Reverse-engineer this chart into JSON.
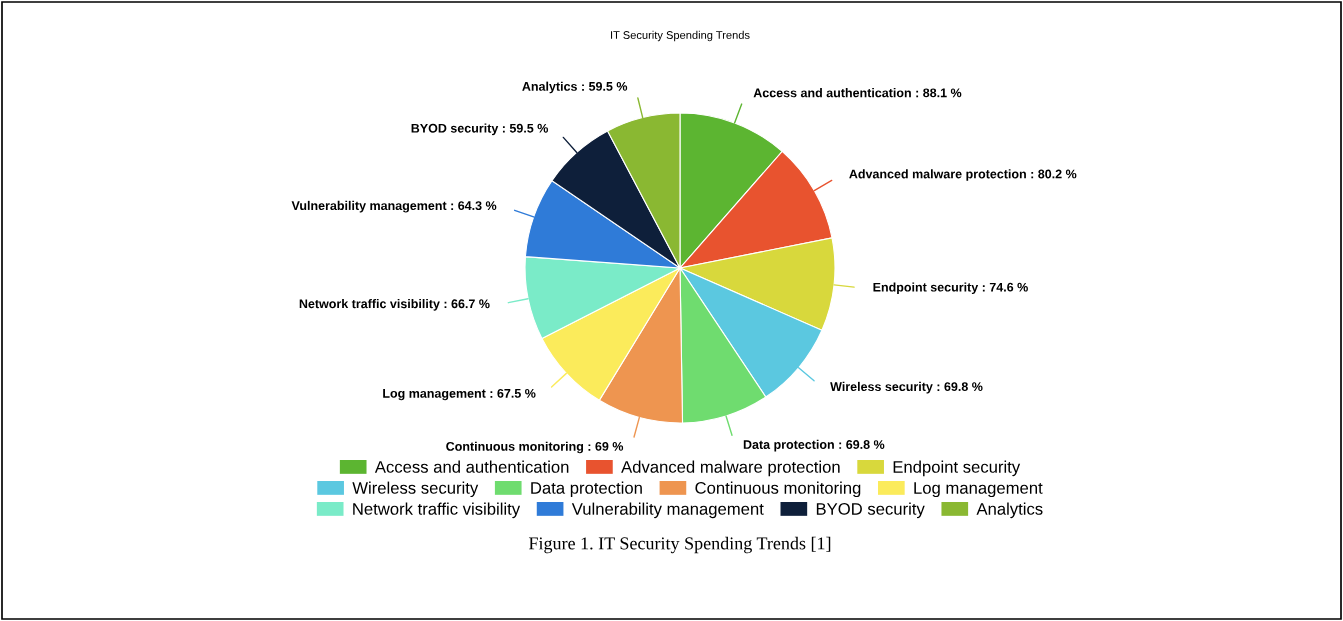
{
  "chart_data": {
    "type": "pie",
    "title": "IT Security Spending Trends",
    "categories": [
      "Access and authentication",
      "Advanced malware protection",
      "Endpoint security",
      "Wireless security",
      "Data protection",
      "Continuous monitoring",
      "Log management",
      "Network traffic visibility",
      "Vulnerability management",
      "BYOD security",
      "Analytics"
    ],
    "values": [
      88.1,
      80.2,
      74.6,
      69.8,
      69.8,
      69,
      67.5,
      66.7,
      64.3,
      59.5,
      59.5
    ],
    "colors": [
      "#5cb531",
      "#e8532f",
      "#d8d83c",
      "#5bc8e0",
      "#6fdc6f",
      "#ee9550",
      "#fbeb5b",
      "#7aebc8",
      "#2f7bd8",
      "#0e1f3a",
      "#8ab832"
    ],
    "value_labels": [
      "Access and authentication : 88.1 %",
      "Advanced malware protection : 80.2 %",
      "Endpoint security : 74.6 %",
      "Wireless security : 69.8 %",
      "Data protection : 69.8 %",
      "Continuous monitoring : 69 %",
      "Log management : 67.5 %",
      "Network traffic visibility : 66.7 %",
      "Vulnerability management : 64.3 %",
      "BYOD security : 59.5 %",
      "Analytics : 59.5 %"
    ],
    "legend": "bottom",
    "annotations": [
      "Figure 1. IT Security Spending Trends [1]"
    ]
  }
}
